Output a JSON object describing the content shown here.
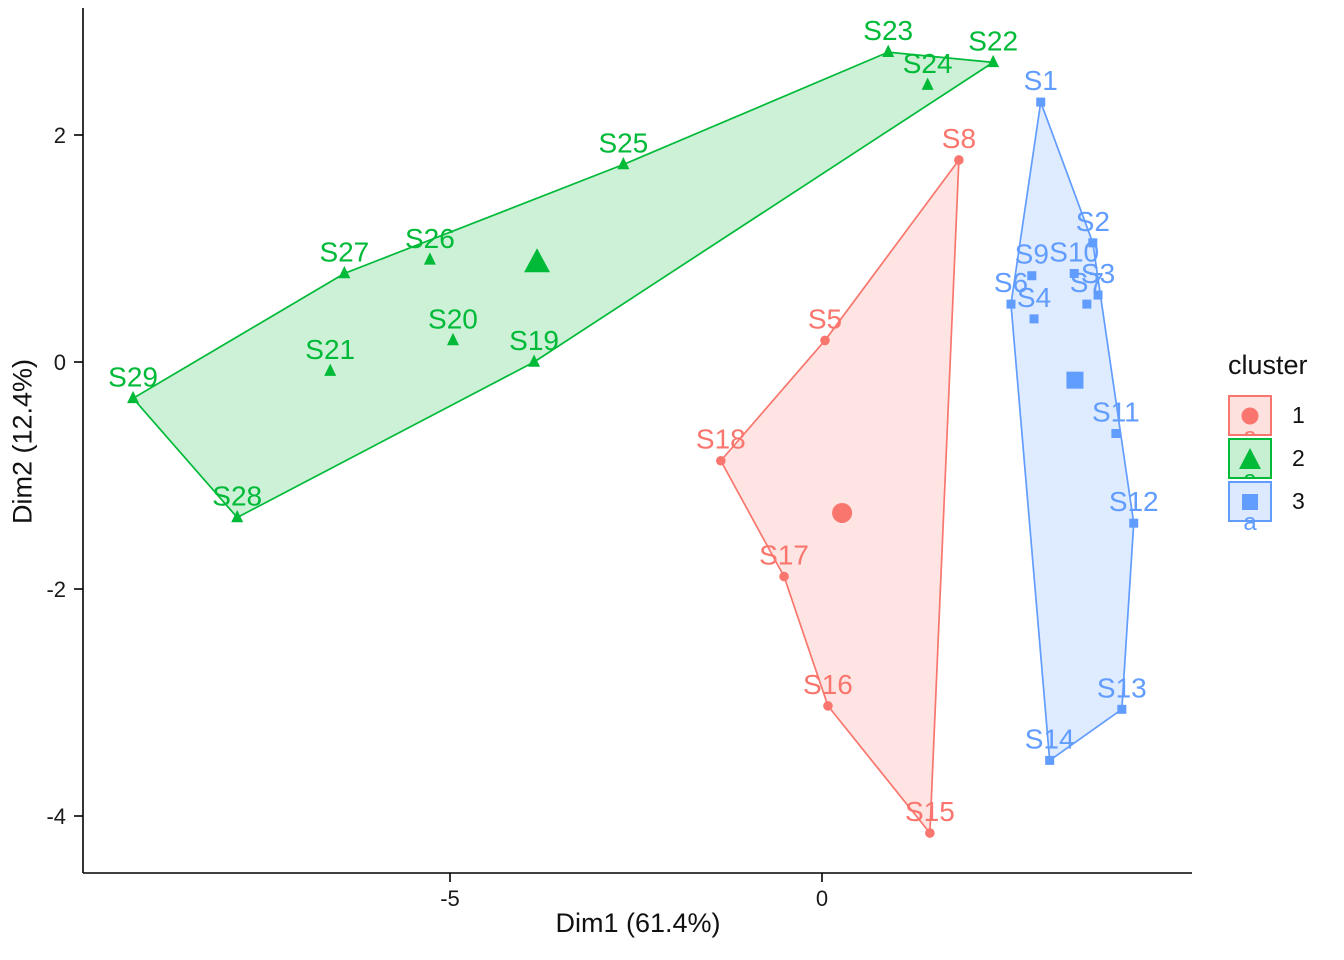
{
  "chart_data": {
    "type": "scatter",
    "title": "",
    "xlabel": "Dim1 (61.4%)",
    "ylabel": "Dim2 (12.4%)",
    "grid": false,
    "xlim": [
      -9.93,
      4.97
    ],
    "ylim": [
      -4.5,
      3.12
    ],
    "x_ticks": [
      {
        "value": -5,
        "label": "-5"
      },
      {
        "value": 0,
        "label": "0"
      }
    ],
    "y_ticks": [
      {
        "value": 2,
        "label": "2"
      },
      {
        "value": 0,
        "label": "0"
      },
      {
        "value": -2,
        "label": "-2"
      },
      {
        "value": -4,
        "label": "-4"
      }
    ],
    "axis_color": "#000000",
    "tick_label_color": "#1a1a1a",
    "legend": {
      "title": "cluster",
      "position": "right",
      "key_glyph_text": "a",
      "items": [
        {
          "label": "1",
          "shape": "circle",
          "color": "#F8766D"
        },
        {
          "label": "2",
          "shape": "triangle",
          "color": "#00BA38"
        },
        {
          "label": "3",
          "shape": "square",
          "color": "#619CFF"
        }
      ]
    },
    "clusters": [
      {
        "name": "1",
        "marker": "circle",
        "color": "#F8766D",
        "fill_opacity": 0.2,
        "centroid": {
          "x": 0.27,
          "y": -1.33
        },
        "hull": [
          "S8",
          "S15",
          "S16",
          "S17",
          "S18",
          "S5"
        ],
        "points": [
          {
            "id": "S5",
            "x": 0.04,
            "y": 0.19
          },
          {
            "id": "S8",
            "x": 1.84,
            "y": 1.78
          },
          {
            "id": "S15",
            "x": 1.45,
            "y": -4.15
          },
          {
            "id": "S16",
            "x": 0.08,
            "y": -3.03
          },
          {
            "id": "S17",
            "x": -0.51,
            "y": -1.89
          },
          {
            "id": "S18",
            "x": -1.36,
            "y": -0.87
          }
        ]
      },
      {
        "name": "2",
        "marker": "triangle",
        "color": "#00BA38",
        "fill_opacity": 0.2,
        "centroid": {
          "x": -3.83,
          "y": 0.87
        },
        "hull": [
          "S29",
          "S27",
          "S25",
          "S23",
          "S22",
          "S19",
          "S28"
        ],
        "points": [
          {
            "id": "S19",
            "x": -3.87,
            "y": 0.0
          },
          {
            "id": "S20",
            "x": -4.96,
            "y": 0.19
          },
          {
            "id": "S21",
            "x": -6.61,
            "y": -0.08
          },
          {
            "id": "S22",
            "x": 2.3,
            "y": 2.64
          },
          {
            "id": "S23",
            "x": 0.89,
            "y": 2.73
          },
          {
            "id": "S24",
            "x": 1.42,
            "y": 2.44
          },
          {
            "id": "S25",
            "x": -2.67,
            "y": 1.74
          },
          {
            "id": "S26",
            "x": -5.27,
            "y": 0.9
          },
          {
            "id": "S27",
            "x": -6.42,
            "y": 0.78
          },
          {
            "id": "S28",
            "x": -7.86,
            "y": -1.37
          },
          {
            "id": "S29",
            "x": -9.26,
            "y": -0.32
          }
        ]
      },
      {
        "name": "3",
        "marker": "square",
        "color": "#619CFF",
        "fill_opacity": 0.2,
        "centroid": {
          "x": 3.4,
          "y": -0.16
        },
        "hull": [
          "S1",
          "S2",
          "S12",
          "S13",
          "S14",
          "S6"
        ],
        "points": [
          {
            "id": "S1",
            "x": 2.94,
            "y": 2.29
          },
          {
            "id": "S2",
            "x": 3.64,
            "y": 1.05
          },
          {
            "id": "S3",
            "x": 3.71,
            "y": 0.59
          },
          {
            "id": "S4",
            "x": 2.85,
            "y": 0.38
          },
          {
            "id": "S6",
            "x": 2.54,
            "y": 0.51
          },
          {
            "id": "S7",
            "x": 3.56,
            "y": 0.51
          },
          {
            "id": "S9",
            "x": 2.82,
            "y": 0.76
          },
          {
            "id": "S10",
            "x": 3.39,
            "y": 0.78
          },
          {
            "id": "S11",
            "x": 3.95,
            "y": -0.63
          },
          {
            "id": "S12",
            "x": 4.19,
            "y": -1.42
          },
          {
            "id": "S13",
            "x": 4.03,
            "y": -3.06
          },
          {
            "id": "S14",
            "x": 3.06,
            "y": -3.51
          }
        ]
      }
    ]
  }
}
